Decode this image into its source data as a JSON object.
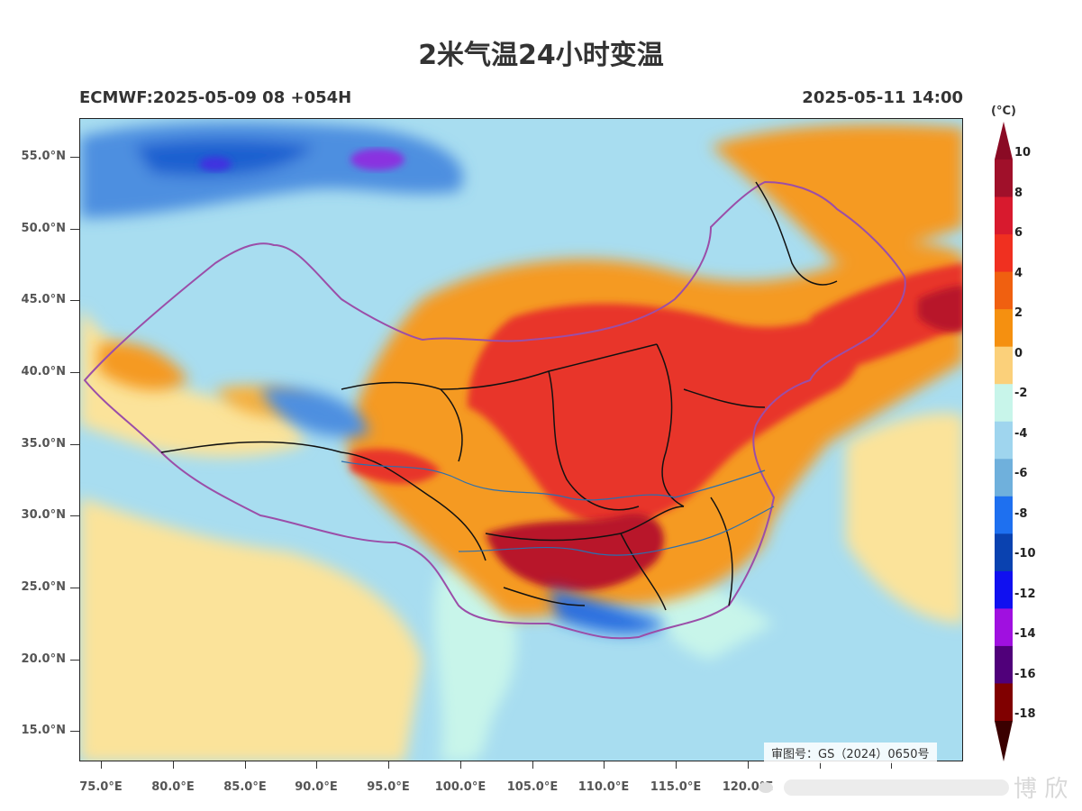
{
  "title": "2米气温24小时变温",
  "model_run": "ECMWF:2025-05-09 08 +054H",
  "valid_time": "2025-05-11 14:00",
  "map_approval": "审图号：GS（2024）0650号",
  "watermark_text": "博 欣",
  "lat_ticks": [
    "55.0°N",
    "50.0°N",
    "45.0°N",
    "40.0°N",
    "35.0°N",
    "30.0°N",
    "25.0°N",
    "20.0°N",
    "15.0°N"
  ],
  "lon_ticks": [
    "75.0°E",
    "80.0°E",
    "85.0°E",
    "90.0°E",
    "95.0°E",
    "100.0°E",
    "105.0°E",
    "110.0°E",
    "115.0°E",
    "120.0°E"
  ],
  "colorbar": {
    "unit": "(°C)",
    "labels": [
      "10",
      "8",
      "6",
      "4",
      "2",
      "0",
      "-2",
      "-4",
      "-6",
      "-8",
      "-10",
      "-12",
      "-14",
      "-16",
      "-18"
    ],
    "colors": [
      "#a0102a",
      "#d81a2e",
      "#f03020",
      "#f06010",
      "#f59010",
      "#fbd07a",
      "#c8f5ea",
      "#9fd5ee",
      "#6fb0dc",
      "#1e70f0",
      "#0a42b0",
      "#1010f0",
      "#a010e0",
      "#50007a",
      "#800000"
    ],
    "top_arrow": "#8a0a24",
    "bottom_arrow": "#3a0000"
  }
}
